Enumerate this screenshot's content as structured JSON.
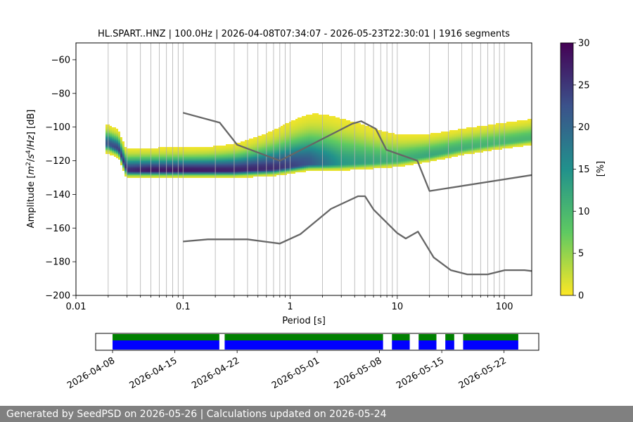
{
  "chart_data": [
    {
      "type": "heatmap",
      "title": "HL.SPART..HNZ | 100.0Hz | 2026-04-08T07:34:07 - 2026-05-23T22:30:01 | 1916 segments",
      "xlabel": "Period [s]",
      "ylabel_parts": [
        "Amplitude [",
        "m",
        "2",
        "/",
        "s",
        "4",
        "/",
        "Hz",
        "] [dB]"
      ],
      "xscale": "log",
      "xlim": [
        0.01,
        180
      ],
      "ylim": [
        -200,
        -50
      ],
      "xticks": [
        {
          "value": 0.01,
          "label": "0.01"
        },
        {
          "value": 0.1,
          "label": "0.1"
        },
        {
          "value": 1,
          "label": "1"
        },
        {
          "value": 10,
          "label": "10"
        },
        {
          "value": 100,
          "label": "100"
        }
      ],
      "yticks": [
        -60,
        -80,
        -100,
        -120,
        -140,
        -160,
        -180,
        -200
      ],
      "grid": "vertical",
      "colorbar": {
        "label": "[%]",
        "min": 0,
        "max": 30,
        "ticks": [
          0,
          5,
          10,
          15,
          20,
          25,
          30
        ],
        "colormap": [
          "#fde725",
          "#5ec962",
          "#21918c",
          "#3b528b",
          "#440154"
        ]
      },
      "psd_mode_ridge": [
        {
          "x": 0.02,
          "y": -110,
          "pct": 22
        },
        {
          "x": 0.025,
          "y": -113,
          "pct": 24
        },
        {
          "x": 0.03,
          "y": -126,
          "pct": 26
        },
        {
          "x": 0.05,
          "y": -126,
          "pct": 28
        },
        {
          "x": 0.1,
          "y": -126,
          "pct": 28
        },
        {
          "x": 0.3,
          "y": -126,
          "pct": 27
        },
        {
          "x": 0.7,
          "y": -125,
          "pct": 26
        },
        {
          "x": 1.5,
          "y": -122,
          "pct": 22
        },
        {
          "x": 3,
          "y": -122,
          "pct": 14
        },
        {
          "x": 6,
          "y": -121,
          "pct": 12
        },
        {
          "x": 10,
          "y": -120,
          "pct": 11
        },
        {
          "x": 20,
          "y": -117,
          "pct": 12
        },
        {
          "x": 40,
          "y": -113,
          "pct": 11
        },
        {
          "x": 80,
          "y": -110,
          "pct": 10
        },
        {
          "x": 180,
          "y": -107,
          "pct": 10
        }
      ],
      "noise_models": [
        {
          "points": [
            [
              0.1,
              -91.5
            ],
            [
              0.22,
              -97.4
            ],
            [
              0.32,
              -110.5
            ],
            [
              0.8,
              -120.0
            ],
            [
              3.8,
              -98.0
            ],
            [
              4.6,
              -96.5
            ],
            [
              6.3,
              -101.0
            ],
            [
              7.9,
              -113.5
            ],
            [
              15.4,
              -120.0
            ],
            [
              20.0,
              -138.0
            ],
            [
              180,
              -128.5
            ]
          ]
        },
        {
          "points": [
            [
              0.1,
              -168.0
            ],
            [
              0.17,
              -166.7
            ],
            [
              0.4,
              -166.7
            ],
            [
              0.8,
              -169.2
            ],
            [
              1.24,
              -163.7
            ],
            [
              2.4,
              -148.6
            ],
            [
              4.3,
              -141.1
            ],
            [
              5.0,
              -141.1
            ],
            [
              6.0,
              -149.0
            ],
            [
              10.0,
              -163.0
            ],
            [
              12.0,
              -166.2
            ],
            [
              15.6,
              -162.1
            ],
            [
              21.9,
              -177.5
            ],
            [
              31.6,
              -185.0
            ],
            [
              45.0,
              -187.5
            ],
            [
              70.0,
              -187.5
            ],
            [
              101.0,
              -185.0
            ],
            [
              154.0,
              -185.0
            ],
            [
              180.0,
              -185.5
            ]
          ]
        }
      ]
    },
    {
      "type": "timeline",
      "start": "2026-04-08",
      "end": "2026-05-24",
      "ticks": [
        "2026-04-08",
        "2026-04-15",
        "2026-04-22",
        "2026-05-01",
        "2026-05-08",
        "2026-05-15",
        "2026-05-22"
      ],
      "data_segments": [
        [
          "2026-04-08",
          "2026-04-20"
        ],
        [
          "2026-04-20.6",
          "2026-05-08.4"
        ],
        [
          "2026-05-09.4",
          "2026-05-11.4"
        ],
        [
          "2026-05-12.4",
          "2026-05-14.4"
        ],
        [
          "2026-05-15.4",
          "2026-05-16.4"
        ],
        [
          "2026-05-17.4",
          "2026-05-23.6"
        ]
      ],
      "colors": {
        "top": "#008000",
        "bottom": "#0000ff"
      }
    }
  ],
  "footer": "Generated by SeedPSD on 2026-05-26 | Calculations updated on 2026-05-24"
}
